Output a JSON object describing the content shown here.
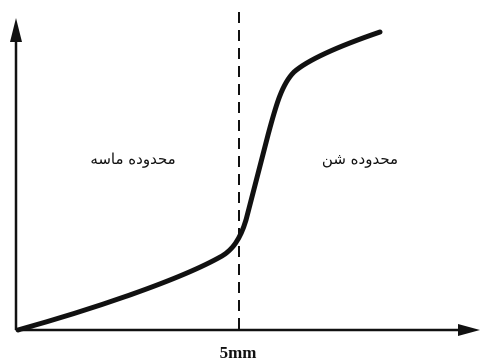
{
  "diagram": {
    "left_region_label": "محدوده ماسه",
    "right_region_label": "محدوده شن",
    "divider_label": "5mm"
  },
  "colors": {
    "ink": "#111111",
    "background": "#ffffff"
  }
}
